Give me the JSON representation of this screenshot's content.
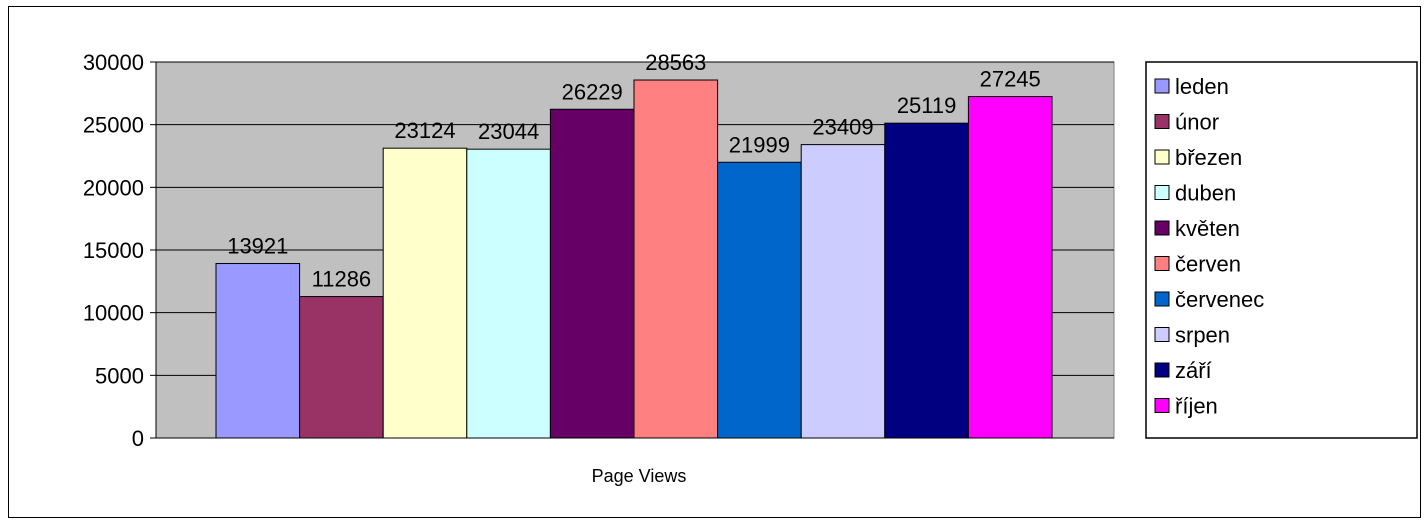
{
  "chart_data": {
    "type": "bar",
    "categories": [
      "Page Views"
    ],
    "series": [
      {
        "name": "leden",
        "values": [
          13921
        ],
        "color": "#9999FF"
      },
      {
        "name": "únor",
        "values": [
          11286
        ],
        "color": "#993366"
      },
      {
        "name": "březen",
        "values": [
          23124
        ],
        "color": "#FFFFCC"
      },
      {
        "name": "duben",
        "values": [
          23044
        ],
        "color": "#CCFFFF"
      },
      {
        "name": "květen",
        "values": [
          26229
        ],
        "color": "#660066"
      },
      {
        "name": "červen",
        "values": [
          28563
        ],
        "color": "#FF8080"
      },
      {
        "name": "červenec",
        "values": [
          21999
        ],
        "color": "#0066CC"
      },
      {
        "name": "srpen",
        "values": [
          23409
        ],
        "color": "#CCCCFF"
      },
      {
        "name": "září",
        "values": [
          25119
        ],
        "color": "#000080"
      },
      {
        "name": "říjen",
        "values": [
          27245
        ],
        "color": "#FF00FF"
      }
    ],
    "data_labels": [
      "13921",
      "11286",
      "23124",
      "23044",
      "26229",
      "28563",
      "21999",
      "23409",
      "25119",
      "27245"
    ],
    "y_ticks": [
      "0",
      "5000",
      "10000",
      "15000",
      "20000",
      "25000",
      "30000"
    ],
    "ylim": [
      0,
      30000
    ],
    "grid": true,
    "plot_background": "#C0C0C0",
    "legend_position": "right"
  }
}
